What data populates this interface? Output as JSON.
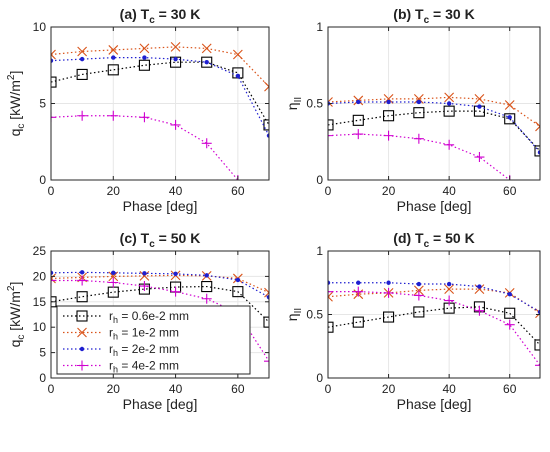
{
  "figure": {
    "series_styles": [
      {
        "color": "#000000",
        "marker": "square"
      },
      {
        "color": "#d95319",
        "marker": "x"
      },
      {
        "color": "#1f1fd0",
        "marker": "dot"
      },
      {
        "color": "#d000d0",
        "marker": "plus"
      }
    ],
    "legend": {
      "placement": "panel c, bottom-left",
      "entries": [
        {
          "main": "r",
          "sub": "h",
          "rest": " = 0.6e-2 mm"
        },
        {
          "main": "r",
          "sub": "h",
          "rest": " = 1e-2 mm"
        },
        {
          "main": "r",
          "sub": "h",
          "rest": " = 2e-2 mm"
        },
        {
          "main": "r",
          "sub": "h",
          "rest": " = 4e-2 mm"
        }
      ]
    }
  },
  "chart_data": [
    {
      "type": "line",
      "title": {
        "main": "(a) T",
        "sub": "c",
        "rest": " = 30 K"
      },
      "xlabel": "Phase [deg]",
      "ylabel": {
        "main": "q",
        "sub": "c",
        "rest": " [kW/m",
        "sup": "2",
        "end": "]"
      },
      "xlim": [
        0,
        70
      ],
      "ylim": [
        0,
        10
      ],
      "xticks": [
        0,
        20,
        40,
        60
      ],
      "yticks": [
        0,
        5,
        10
      ],
      "grid": true,
      "x": [
        0,
        10,
        20,
        30,
        40,
        50,
        60,
        70
      ],
      "series": [
        {
          "values": [
            6.4,
            6.9,
            7.2,
            7.5,
            7.7,
            7.7,
            7.0,
            3.6
          ]
        },
        {
          "values": [
            8.2,
            8.4,
            8.5,
            8.6,
            8.7,
            8.6,
            8.2,
            6.1
          ]
        },
        {
          "values": [
            7.8,
            7.9,
            8.0,
            8.0,
            7.9,
            7.7,
            6.8,
            2.9
          ]
        },
        {
          "values": [
            4.1,
            4.2,
            4.2,
            4.1,
            3.6,
            2.4,
            0.0,
            null
          ]
        }
      ]
    },
    {
      "type": "line",
      "title": {
        "main": "(b) T",
        "sub": "c",
        "rest": " = 30 K"
      },
      "xlabel": "Phase [deg]",
      "ylabel": {
        "main": "η",
        "sub": "II",
        "rest": ""
      },
      "xlim": [
        0,
        70
      ],
      "ylim": [
        0,
        1
      ],
      "xticks": [
        0,
        20,
        40,
        60
      ],
      "yticks": [
        0,
        0.5,
        1
      ],
      "grid": true,
      "x": [
        0,
        10,
        20,
        30,
        40,
        50,
        60,
        70
      ],
      "series": [
        {
          "values": [
            0.36,
            0.39,
            0.42,
            0.44,
            0.45,
            0.45,
            0.4,
            0.19
          ]
        },
        {
          "values": [
            0.51,
            0.52,
            0.53,
            0.53,
            0.54,
            0.53,
            0.49,
            0.35
          ]
        },
        {
          "values": [
            0.5,
            0.51,
            0.51,
            0.51,
            0.5,
            0.48,
            0.41,
            0.18
          ]
        },
        {
          "values": [
            0.29,
            0.3,
            0.29,
            0.27,
            0.23,
            0.15,
            0.0,
            null
          ]
        }
      ]
    },
    {
      "type": "line",
      "title": {
        "main": "(c) T",
        "sub": "c",
        "rest": " = 50 K"
      },
      "xlabel": "Phase [deg]",
      "ylabel": {
        "main": "q",
        "sub": "c",
        "rest": " [kW/m",
        "sup": "2",
        "end": "]"
      },
      "xlim": [
        0,
        70
      ],
      "ylim": [
        0,
        25
      ],
      "xticks": [
        0,
        20,
        40,
        60
      ],
      "yticks": [
        0,
        5,
        10,
        15,
        20,
        25
      ],
      "grid": true,
      "x": [
        0,
        10,
        20,
        30,
        40,
        50,
        60,
        70
      ],
      "series": [
        {
          "values": [
            15.0,
            16.0,
            16.9,
            17.5,
            17.9,
            18.0,
            17.0,
            11.0
          ]
        },
        {
          "values": [
            19.6,
            19.8,
            20.0,
            20.1,
            20.2,
            20.1,
            19.6,
            16.8
          ]
        },
        {
          "values": [
            20.7,
            20.8,
            20.7,
            20.6,
            20.5,
            20.2,
            19.3,
            15.9
          ]
        },
        {
          "values": [
            19.2,
            19.2,
            18.8,
            18.1,
            17.0,
            15.6,
            12.8,
            3.3
          ]
        }
      ]
    },
    {
      "type": "line",
      "title": {
        "main": "(d) T",
        "sub": "c",
        "rest": " = 50 K"
      },
      "xlabel": "Phase [deg]",
      "ylabel": {
        "main": "η",
        "sub": "II",
        "rest": ""
      },
      "xlim": [
        0,
        70
      ],
      "ylim": [
        0,
        1
      ],
      "xticks": [
        0,
        20,
        40,
        60
      ],
      "yticks": [
        0,
        0.5,
        1
      ],
      "grid": true,
      "x": [
        0,
        10,
        20,
        30,
        40,
        50,
        60,
        70
      ],
      "series": [
        {
          "values": [
            0.4,
            0.44,
            0.48,
            0.52,
            0.55,
            0.56,
            0.51,
            0.26
          ]
        },
        {
          "values": [
            0.64,
            0.66,
            0.67,
            0.69,
            0.7,
            0.7,
            0.67,
            0.51
          ]
        },
        {
          "values": [
            0.75,
            0.75,
            0.75,
            0.74,
            0.74,
            0.72,
            0.66,
            0.52
          ]
        },
        {
          "values": [
            0.68,
            0.68,
            0.67,
            0.65,
            0.61,
            0.53,
            0.42,
            0.1
          ]
        }
      ]
    }
  ]
}
